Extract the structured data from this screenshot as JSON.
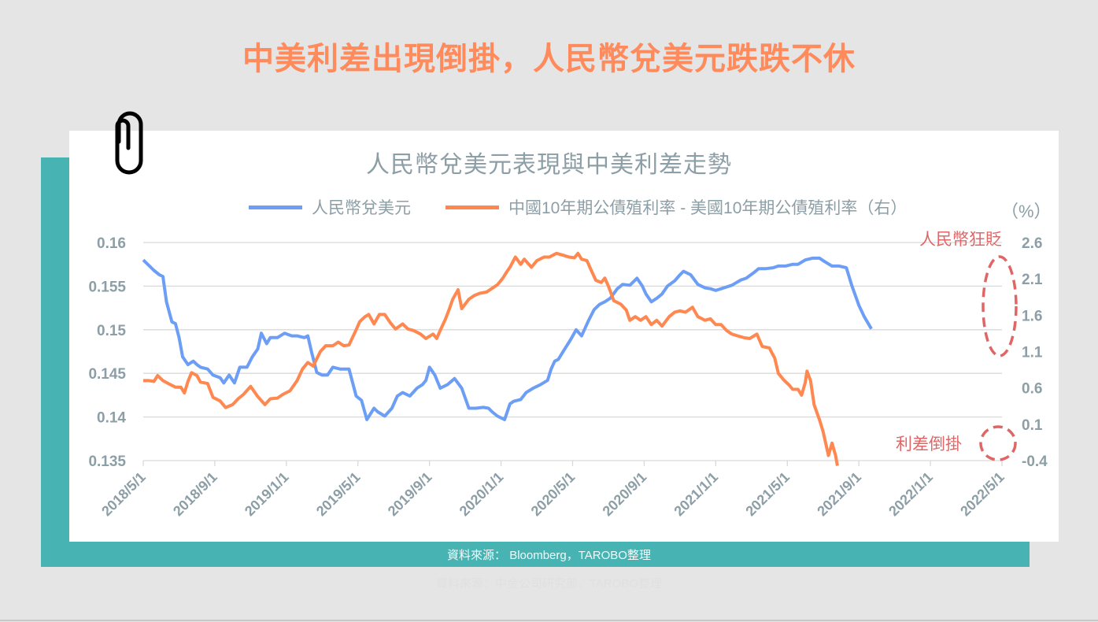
{
  "page": {
    "main_title": "中美利差出現倒掛，人民幣兌美元跌跌不休",
    "source_label": "資料來源： Bloomberg，TAROBO整理",
    "ghost_source_label": "資料來源：中金公司研究部，TAROBO整理"
  },
  "colors": {
    "background": "#e5e5e5",
    "title": "#ff8a5b",
    "teal": "#47b3b3",
    "axis_text": "#8c9ea6",
    "blue_series": "#6d9ef5",
    "orange_series": "#ff8750",
    "annotation": "#e06666",
    "grid": "#d9d9d9"
  },
  "chart_data": {
    "type": "line",
    "title": "人民幣兌美元表現與中美利差走勢",
    "legend": [
      {
        "name": "人民幣兌美元",
        "axis": "left",
        "color": "#6d9ef5"
      },
      {
        "name": "中國10年期公債殖利率 - 美國10年期公債殖利率（右）",
        "axis": "right",
        "color": "#ff8750"
      }
    ],
    "legend_position": "top",
    "grid": true,
    "x_tick_labels": [
      "2018/5/1",
      "2018/9/1",
      "2019/1/1",
      "2019/5/1",
      "2019/9/1",
      "2020/1/1",
      "2020/5/1",
      "2020/9/1",
      "2021/1/1",
      "2021/5/1",
      "2021/9/1",
      "2022/1/1",
      "2022/5/1"
    ],
    "y_left": {
      "label": "",
      "ticks": [
        "0.16",
        "0.155",
        "0.15",
        "0.145",
        "0.14",
        "0.135"
      ],
      "ylim": [
        0.135,
        0.16
      ]
    },
    "y_right": {
      "label": "（%）",
      "ticks": [
        "2.6",
        "2.1",
        "1.6",
        "1.1",
        "0.6",
        "0.1",
        "-0.4"
      ],
      "ylim": [
        -0.4,
        2.6
      ]
    },
    "annotations": [
      {
        "text": "人民幣狂貶",
        "target": "blue series sharp drop, Apr 2022"
      },
      {
        "text": "利差倒掛",
        "target": "orange series below zero, Apr-May 2022"
      }
    ],
    "series": [
      {
        "name": "人民幣兌美元",
        "axis": "left",
        "x_month_index": [
          0,
          0.3,
          0.6,
          0.9,
          1.1,
          1.3,
          1.6,
          1.8,
          2.0,
          2.2,
          2.5,
          2.8,
          3.0,
          3.2,
          3.6,
          3.9,
          4.3,
          4.5,
          4.8,
          5.1,
          5.4,
          5.8,
          6.1,
          6.4,
          6.6,
          6.9,
          7.1,
          7.5,
          7.9,
          8.3,
          8.6,
          9.0,
          9.2,
          9.4,
          9.7,
          10.0,
          10.3,
          10.6,
          11.0,
          11.3,
          11.5,
          11.9,
          12.2,
          12.5,
          12.9,
          13.1,
          13.5,
          13.9,
          14.2,
          14.5,
          14.9,
          15.3,
          15.6,
          15.8,
          16.0,
          16.3,
          16.6,
          17.0,
          17.4,
          17.8,
          18.2,
          18.6,
          19.0,
          19.3,
          19.5,
          19.8,
          20.2,
          20.5,
          20.7,
          21.1,
          21.4,
          21.8,
          22.2,
          22.6,
          22.8,
          23.0,
          23.2,
          23.5,
          23.9,
          24.2,
          24.5,
          24.9,
          25.2,
          25.5,
          25.8,
          26.1,
          26.5,
          26.8,
          27.2,
          27.6,
          27.9,
          28.1,
          28.4,
          28.7,
          29.0,
          29.3,
          29.7,
          30.0,
          30.2,
          30.6,
          31.0,
          31.4,
          31.7,
          32.0,
          32.3,
          32.6,
          32.9,
          33.4,
          33.7,
          34.1,
          34.4,
          34.8,
          35.2,
          35.5,
          35.9,
          36.3,
          36.6,
          37.0,
          37.4,
          37.8,
          38.1,
          38.5,
          38.9,
          39.3,
          39.6,
          40.0,
          40.3,
          40.7,
          41.1,
          41.4,
          41.6,
          41.8,
          41.9,
          42.0
        ],
        "values": [
          0.158,
          0.1574,
          0.1568,
          0.1563,
          0.1561,
          0.1532,
          0.1509,
          0.1507,
          0.1491,
          0.1469,
          0.146,
          0.1464,
          0.146,
          0.1457,
          0.1455,
          0.1448,
          0.1445,
          0.1439,
          0.1448,
          0.1439,
          0.1457,
          0.1457,
          0.1469,
          0.1478,
          0.1496,
          0.1484,
          0.1491,
          0.1491,
          0.1496,
          0.1493,
          0.1493,
          0.1491,
          0.1493,
          0.1475,
          0.1451,
          0.1448,
          0.1448,
          0.1457,
          0.1455,
          0.1455,
          0.1455,
          0.1424,
          0.1419,
          0.1397,
          0.141,
          0.1406,
          0.1401,
          0.141,
          0.1424,
          0.1428,
          0.1424,
          0.1433,
          0.1437,
          0.1442,
          0.1457,
          0.1448,
          0.1433,
          0.1437,
          0.1444,
          0.1433,
          0.141,
          0.141,
          0.1411,
          0.141,
          0.1406,
          0.1401,
          0.1397,
          0.1415,
          0.1418,
          0.142,
          0.1428,
          0.1433,
          0.1437,
          0.1442,
          0.1455,
          0.1464,
          0.1466,
          0.1476,
          0.1489,
          0.15,
          0.1493,
          0.1511,
          0.1523,
          0.1529,
          0.1532,
          0.1536,
          0.1547,
          0.1552,
          0.1551,
          0.1559,
          0.155,
          0.1541,
          0.1532,
          0.1536,
          0.1541,
          0.155,
          0.1556,
          0.1563,
          0.1567,
          0.1563,
          0.1552,
          0.1548,
          0.1547,
          0.1545,
          0.1547,
          0.1549,
          0.1551,
          0.1557,
          0.1559,
          0.1565,
          0.157,
          0.157,
          0.1571,
          0.1573,
          0.1573,
          0.1575,
          0.1575,
          0.158,
          0.1582,
          0.1582,
          0.1578,
          0.1573,
          0.1573,
          0.1571,
          0.1551,
          0.1528,
          0.1515,
          0.1501
        ]
      },
      {
        "name": "中國10年期公債殖利率 - 美國10年期公債殖利率（右）",
        "axis": "right",
        "x_month_index": [
          0,
          0.3,
          0.6,
          0.8,
          1.1,
          1.4,
          1.8,
          2.1,
          2.3,
          2.5,
          2.7,
          3.0,
          3.2,
          3.6,
          3.9,
          4.3,
          4.6,
          5.0,
          5.3,
          5.6,
          6.0,
          6.4,
          6.8,
          7.1,
          7.5,
          7.8,
          8.2,
          8.6,
          8.9,
          9.2,
          9.5,
          9.9,
          10.2,
          10.6,
          10.9,
          11.2,
          11.5,
          11.9,
          12.1,
          12.4,
          12.6,
          12.9,
          13.2,
          13.5,
          13.8,
          14.1,
          14.5,
          14.8,
          15.1,
          15.5,
          15.8,
          16.2,
          16.4,
          16.6,
          16.9,
          17.1,
          17.3,
          17.6,
          17.8,
          18.2,
          18.5,
          18.8,
          19.2,
          19.5,
          19.8,
          20.1,
          20.3,
          20.5,
          20.8,
          21.1,
          21.3,
          21.7,
          22.0,
          22.4,
          22.7,
          23.1,
          23.4,
          23.8,
          24.1,
          24.3,
          24.5,
          24.8,
          25.0,
          25.3,
          25.6,
          25.8,
          26.0,
          26.3,
          26.7,
          27.0,
          27.2,
          27.5,
          27.8,
          28.1,
          28.4,
          28.7,
          29.0,
          29.4,
          29.7,
          30.0,
          30.3,
          30.7,
          31.0,
          31.4,
          31.7,
          32.0,
          32.3,
          32.6,
          32.9,
          33.3,
          33.6,
          33.9,
          34.3,
          34.6,
          35.0,
          35.1,
          35.3,
          35.5,
          35.8,
          36.1,
          36.3,
          36.6,
          36.8,
          37.0,
          37.1,
          37.3,
          37.5,
          37.8,
          38.0,
          38.2,
          38.3,
          38.5,
          38.7,
          38.8,
          39.0,
          39.2,
          39.4,
          39.5,
          39.7,
          40.0
        ],
        "values": [
          0.7,
          0.7,
          0.69,
          0.77,
          0.7,
          0.66,
          0.61,
          0.61,
          0.53,
          0.69,
          0.81,
          0.77,
          0.68,
          0.66,
          0.47,
          0.42,
          0.33,
          0.37,
          0.45,
          0.51,
          0.62,
          0.48,
          0.37,
          0.45,
          0.46,
          0.51,
          0.56,
          0.7,
          0.86,
          0.95,
          0.9,
          1.1,
          1.18,
          1.18,
          1.23,
          1.18,
          1.19,
          1.4,
          1.51,
          1.58,
          1.61,
          1.48,
          1.61,
          1.61,
          1.5,
          1.41,
          1.48,
          1.41,
          1.39,
          1.34,
          1.28,
          1.34,
          1.28,
          1.39,
          1.55,
          1.68,
          1.82,
          1.95,
          1.69,
          1.82,
          1.87,
          1.9,
          1.92,
          1.97,
          2.02,
          2.11,
          2.19,
          2.26,
          2.4,
          2.3,
          2.37,
          2.26,
          2.35,
          2.4,
          2.4,
          2.45,
          2.43,
          2.4,
          2.39,
          2.45,
          2.37,
          2.35,
          2.24,
          2.08,
          2.05,
          2.11,
          2.0,
          1.8,
          1.75,
          1.67,
          1.53,
          1.58,
          1.53,
          1.58,
          1.47,
          1.53,
          1.45,
          1.58,
          1.64,
          1.66,
          1.64,
          1.71,
          1.58,
          1.53,
          1.55,
          1.47,
          1.47,
          1.39,
          1.34,
          1.31,
          1.29,
          1.28,
          1.34,
          1.17,
          1.15,
          1.1,
          1.01,
          0.8,
          0.71,
          0.64,
          0.58,
          0.58,
          0.5,
          0.67,
          0.83,
          0.7,
          0.37,
          0.16,
          0.0,
          -0.22,
          -0.33,
          -0.16,
          -0.33,
          -0.47
        ]
      }
    ]
  }
}
